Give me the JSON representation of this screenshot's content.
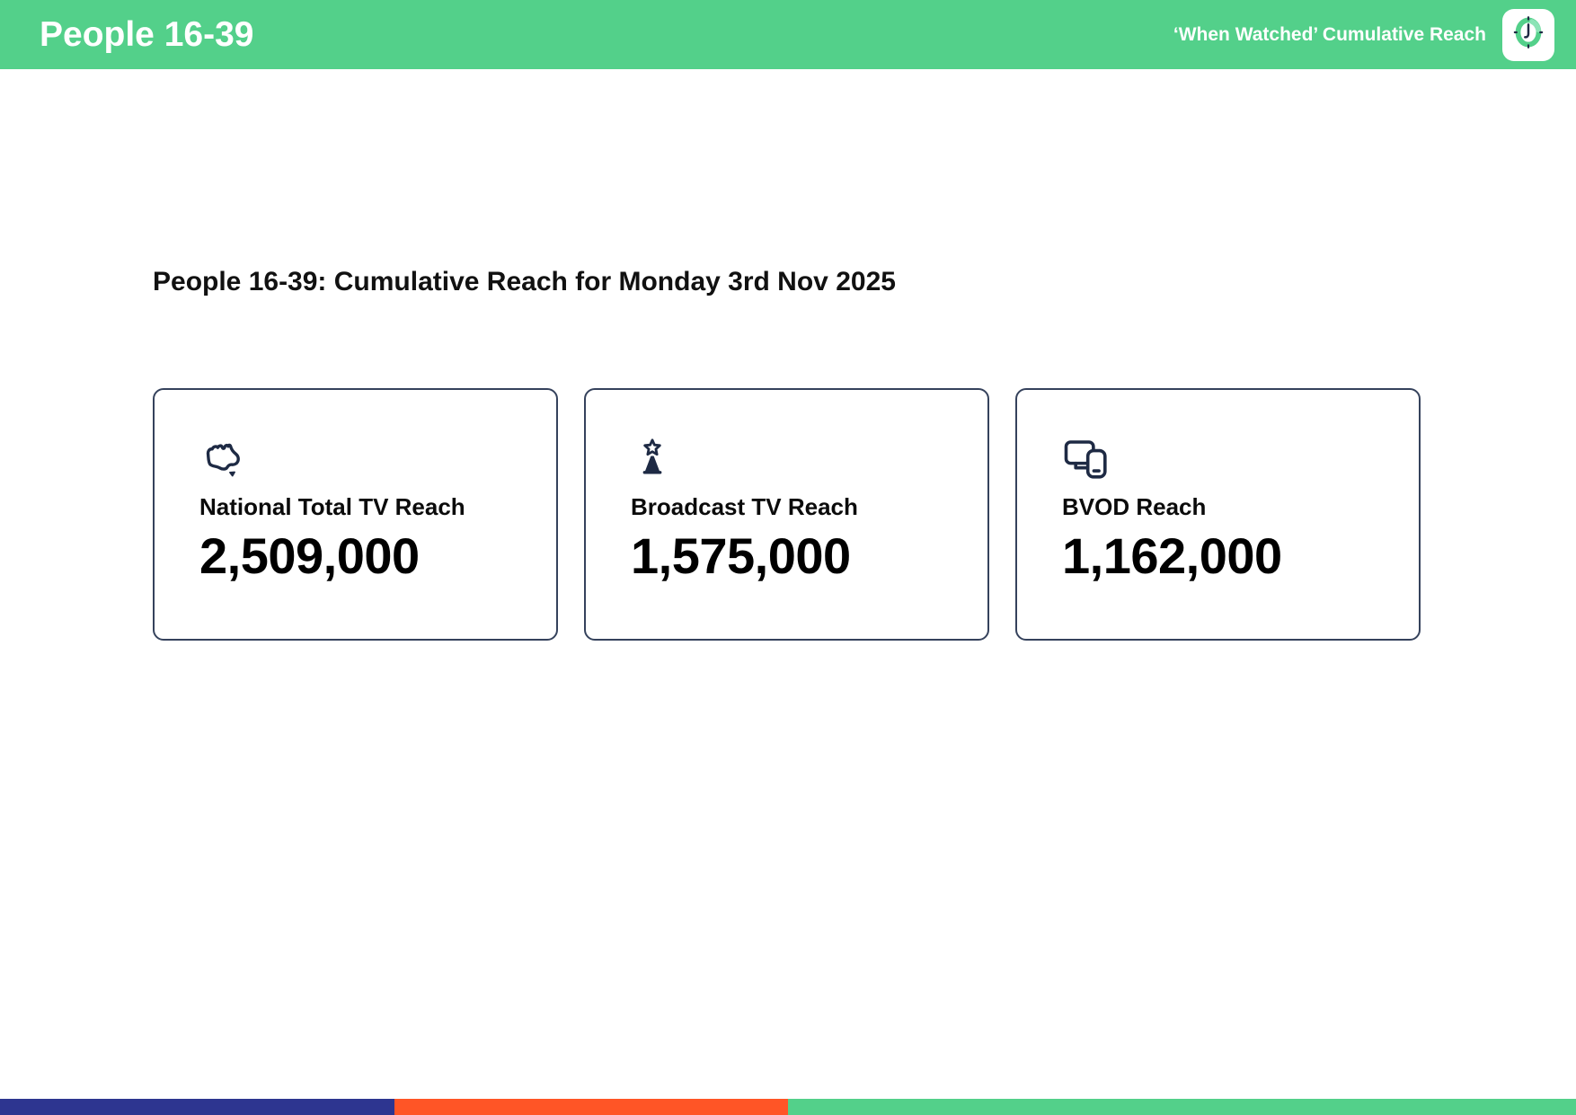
{
  "header": {
    "title": "People 16-39",
    "subtitle": "‘When Watched’ Cumulative Reach",
    "logo_icon": "clock-icon"
  },
  "main": {
    "heading": "People 16-39: Cumulative Reach for Monday 3rd Nov 2025",
    "cards": [
      {
        "icon": "australia-map-icon",
        "label": "National Total TV Reach",
        "value": "2,509,000"
      },
      {
        "icon": "broadcast-tower-star-icon",
        "label": "Broadcast TV Reach",
        "value": "1,575,000"
      },
      {
        "icon": "devices-icon",
        "label": "BVOD Reach",
        "value": "1,162,000"
      }
    ]
  },
  "footer": {
    "segments": [
      {
        "name": "navy-segment",
        "color": "#2d3590",
        "width_pct": 25
      },
      {
        "name": "orange-segment",
        "color": "#ff5526",
        "width_pct": 25
      },
      {
        "name": "green-segment",
        "color": "#53d08a",
        "width_pct": 50
      }
    ]
  },
  "colors": {
    "brand_green": "#53d08a",
    "accent_navy": "#1e2a44",
    "card_border": "#35425c"
  }
}
